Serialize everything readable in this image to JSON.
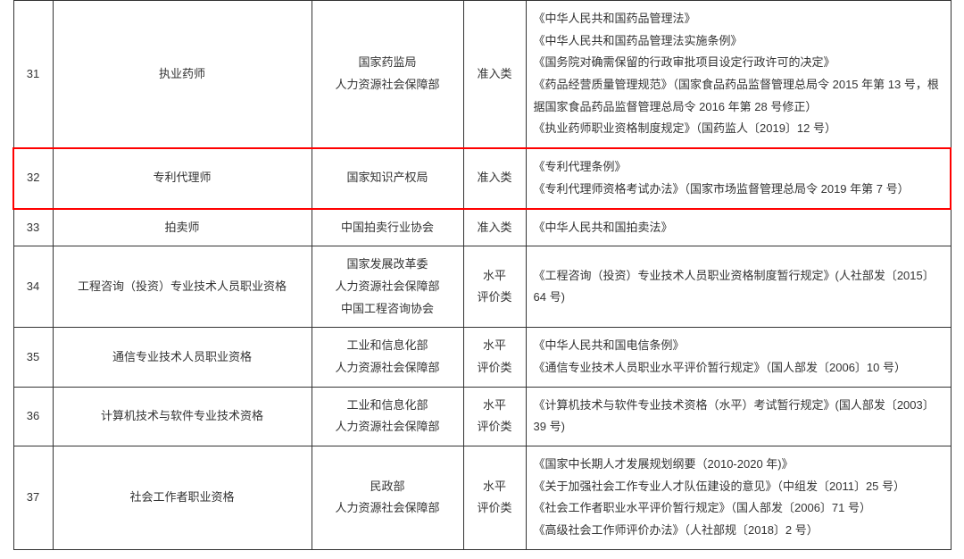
{
  "table": {
    "highlight_index": 1,
    "rows": [
      {
        "num": "31",
        "title": "执业药师",
        "agency": [
          "国家药监局",
          "人力资源社会保障部"
        ],
        "cat": "准入类",
        "basis": [
          "《中华人民共和国药品管理法》",
          "《中华人民共和国药品管理法实施条例》",
          "《国务院对确需保留的行政审批项目设定行政许可的决定》",
          "《药品经营质量管理规范》（国家食品药品监督管理总局令 2015 年第 13 号，根据国家食品药品监督管理总局令 2016 年第 28 号修正）",
          "《执业药师职业资格制度规定》（国药监人〔2019〕12 号）"
        ]
      },
      {
        "num": "32",
        "title": "专利代理师",
        "agency": [
          "国家知识产权局"
        ],
        "cat": "准入类",
        "basis": [
          "《专利代理条例》",
          "《专利代理师资格考试办法》（国家市场监督管理总局令 2019 年第 7 号）"
        ]
      },
      {
        "num": "33",
        "title": "拍卖师",
        "agency": [
          "中国拍卖行业协会"
        ],
        "cat": "准入类",
        "basis": [
          "《中华人民共和国拍卖法》"
        ]
      },
      {
        "num": "34",
        "title": "工程咨询（投资）专业技术人员职业资格",
        "agency": [
          "国家发展改革委",
          "人力资源社会保障部",
          "中国工程咨询协会"
        ],
        "cat": [
          "水平",
          "评价类"
        ],
        "basis": [
          "《工程咨询（投资）专业技术人员职业资格制度暂行规定》(人社部发〔2015〕64 号)"
        ]
      },
      {
        "num": "35",
        "title": "通信专业技术人员职业资格",
        "agency": [
          "工业和信息化部",
          "人力资源社会保障部"
        ],
        "cat": [
          "水平",
          "评价类"
        ],
        "basis": [
          "《中华人民共和国电信条例》",
          "《通信专业技术人员职业水平评价暂行规定》（国人部发〔2006〕10 号）"
        ]
      },
      {
        "num": "36",
        "title": "计算机技术与软件专业技术资格",
        "agency": [
          "工业和信息化部",
          "人力资源社会保障部"
        ],
        "cat": [
          "水平",
          "评价类"
        ],
        "basis": [
          "《计算机技术与软件专业技术资格（水平）考试暂行规定》(国人部发〔2003〕39 号)"
        ]
      },
      {
        "num": "37",
        "title": "社会工作者职业资格",
        "agency": [
          "民政部",
          "人力资源社会保障部"
        ],
        "cat": [
          "水平",
          "评价类"
        ],
        "basis": [
          "《国家中长期人才发展规划纲要（2010-2020 年)》",
          "《关于加强社会工作专业人才队伍建设的意见》（中组发〔2011〕25 号）",
          "《社会工作者职业水平评价暂行规定》（国人部发〔2006〕71 号）",
          "《高级社会工作师评价办法》（人社部规〔2018〕2 号）"
        ]
      }
    ]
  }
}
